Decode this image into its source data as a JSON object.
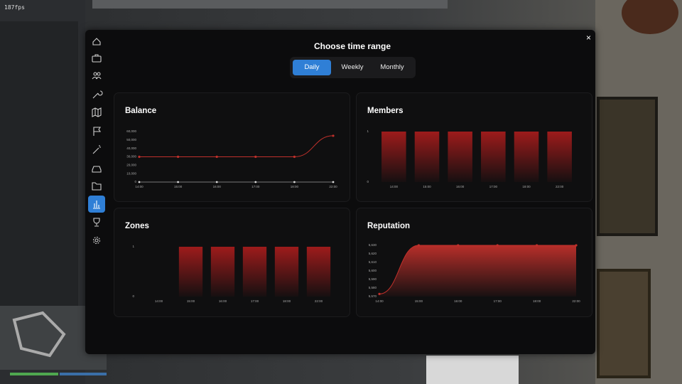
{
  "fps": "187fps",
  "panel": {
    "title": "Choose time range",
    "close": "×",
    "tabs": [
      "Daily",
      "Weekly",
      "Monthly"
    ],
    "selected_tab": "Daily"
  },
  "chart_data": [
    {
      "type": "line",
      "title": "Balance",
      "color": "#c0302b",
      "categories": [
        "14:00",
        "15:00",
        "16:00",
        "17:00",
        "18:00",
        "22:00"
      ],
      "values": [
        30000,
        30000,
        30000,
        30000,
        30000,
        55000
      ],
      "ylim": [
        0,
        60000
      ],
      "yticks": [
        0,
        {
          "value": 10000,
          "label": "10,000"
        },
        {
          "value": 20000,
          "label": "20,000"
        },
        {
          "value": 30000,
          "label": "30,000"
        },
        {
          "value": 40000,
          "label": "40,000"
        },
        {
          "value": 50000,
          "label": "50,000"
        },
        {
          "value": 60000,
          "label": "60,000"
        }
      ]
    },
    {
      "type": "bar",
      "title": "Members",
      "color": "#a51c1c",
      "categories": [
        "14:00",
        "15:00",
        "16:00",
        "17:00",
        "18:00",
        "22:00"
      ],
      "values": [
        1,
        1,
        1,
        1,
        1,
        1
      ],
      "ylim": [
        0,
        1
      ],
      "yticks": [
        0,
        1
      ]
    },
    {
      "type": "bar",
      "title": "Zones",
      "color": "#a51c1c",
      "categories": [
        "14:00",
        "15:00",
        "16:00",
        "17:00",
        "18:00",
        "22:00"
      ],
      "values": [
        0,
        1,
        1,
        1,
        1,
        1
      ],
      "ylim": [
        0,
        1
      ],
      "yticks": [
        0,
        1
      ]
    },
    {
      "type": "area",
      "title": "Reputation",
      "color": "#c0302b",
      "categories": [
        "14:00",
        "15:00",
        "16:00",
        "17:00",
        "18:00",
        "22:00"
      ],
      "values": [
        5573,
        5630,
        5630,
        5630,
        5630,
        5630
      ],
      "ylim": [
        5570,
        5630
      ],
      "yticks": [
        {
          "value": 5570,
          "label": "5,570"
        },
        {
          "value": 5580,
          "label": "5,580"
        },
        {
          "value": 5590,
          "label": "5,590"
        },
        {
          "value": 5600,
          "label": "5,600"
        },
        {
          "value": 5610,
          "label": "5,610"
        },
        {
          "value": 5620,
          "label": "5,620"
        },
        {
          "value": 5630,
          "label": "5,630"
        }
      ]
    }
  ]
}
